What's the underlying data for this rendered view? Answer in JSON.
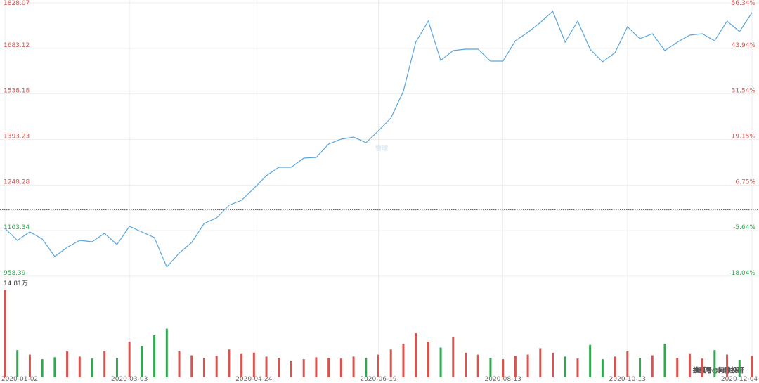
{
  "chart_data": {
    "type": "stock",
    "categories": [
      "2020-01-02",
      null,
      null,
      null,
      null,
      null,
      null,
      null,
      null,
      null,
      "2020-03-03",
      null,
      null,
      null,
      null,
      null,
      null,
      null,
      null,
      null,
      "2020-04-24",
      null,
      null,
      null,
      null,
      null,
      null,
      null,
      null,
      null,
      "2020-06-19",
      null,
      null,
      null,
      null,
      null,
      null,
      null,
      null,
      null,
      "2020-08-13",
      null,
      null,
      null,
      null,
      null,
      null,
      null,
      null,
      null,
      "2020-10-13",
      null,
      null,
      null,
      null,
      null,
      null,
      null,
      null,
      null,
      "2020-12-04"
    ],
    "series": [
      {
        "name": "price",
        "color": "#5aa6dc",
        "values": [
          1110.4,
          1072.4,
          1099.2,
          1076.9,
          1021.0,
          1050.0,
          1072.4,
          1068.0,
          1094.7,
          1059.0,
          1117.1,
          1099.2,
          1081.3,
          987.4,
          1032.2,
          1065.7,
          1126.1,
          1143.9,
          1184.2,
          1199.8,
          1237.8,
          1278.1,
          1304.9,
          1304.9,
          1334.0,
          1336.2,
          1378.7,
          1394.3,
          1401.0,
          1383.1,
          1421.2,
          1461.4,
          1546.4,
          1702.9,
          1769.9,
          1644.7,
          1676.0,
          1680.5,
          1680.5,
          1642.5,
          1642.5,
          1707.3,
          1734.2,
          1765.5,
          1801.2,
          1702.9,
          1769.9,
          1680.5,
          1640.3,
          1669.3,
          1752.0,
          1714.0,
          1729.7,
          1676.0,
          1702.9,
          1725.2,
          1729.7,
          1707.3,
          1769.9,
          1736.4,
          1796.8
        ]
      },
      {
        "name": "volume",
        "values": [
          13.5,
          4.2,
          3.5,
          2.8,
          3.1,
          4.0,
          3.2,
          2.9,
          4.1,
          3.0,
          5.5,
          4.8,
          6.5,
          7.5,
          4.0,
          3.4,
          3.0,
          3.3,
          4.3,
          3.6,
          3.8,
          3.2,
          3.0,
          2.6,
          2.8,
          3.1,
          3.0,
          2.9,
          3.2,
          3.0,
          3.5,
          4.3,
          5.2,
          6.8,
          5.5,
          4.6,
          6.2,
          3.8,
          3.5,
          3.0,
          2.8,
          3.3,
          3.5,
          4.5,
          3.8,
          3.2,
          2.9,
          5.0,
          2.8,
          3.2,
          4.1,
          3.0,
          3.4,
          5.2,
          3.0,
          3.6,
          2.9,
          4.2,
          3.5,
          2.7,
          3.3
        ]
      }
    ],
    "ylim": [
      958.39,
      1828.07
    ],
    "yticks": [
      1828.07,
      1683.12,
      1538.18,
      1393.23,
      1248.28,
      1103.34,
      958.39
    ],
    "y2lim": [
      -18.04,
      56.34
    ],
    "y2ticks": [
      {
        "value": 56.34,
        "label": "56.34%"
      },
      {
        "value": 43.94,
        "label": "43.94%"
      },
      {
        "value": 31.54,
        "label": "31.54%"
      },
      {
        "value": 19.15,
        "label": "19.15%"
      },
      {
        "value": 6.75,
        "label": "6.75%"
      },
      {
        "value": -5.64,
        "label": "-5.64%"
      },
      {
        "value": -18.04,
        "label": "-18.04%"
      }
    ],
    "volume_ylim": [
      0,
      14.81
    ],
    "volume_ticks": [
      {
        "value": 14.81,
        "label": "14.81万"
      }
    ],
    "up_color": "#d9534f",
    "down_color": "#2fa84f",
    "grid": true,
    "watermarks": [
      "雪球",
      "搜狐号@间隙投研"
    ]
  }
}
